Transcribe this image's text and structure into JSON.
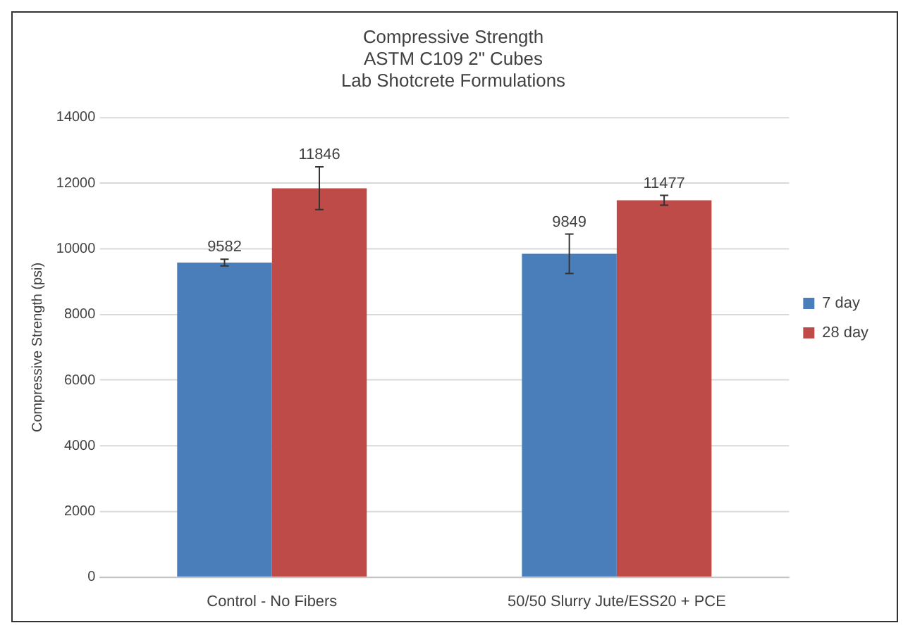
{
  "chart_data": {
    "type": "bar",
    "title": "Compressive Strength\nASTM C109 2\" Cubes\nLab Shotcrete Formulations",
    "ylabel": "Compressive Strength (psi)",
    "categories": [
      "Control - No Fibers",
      "50/50 Slurry Jute/ESS20 + PCE"
    ],
    "series": [
      {
        "name": "7 day",
        "color": "#4a7ebb",
        "values": [
          9582,
          9849
        ],
        "errors": [
          100,
          600
        ]
      },
      {
        "name": "28 day",
        "color": "#be4b48",
        "values": [
          11846,
          11477
        ],
        "errors": [
          650,
          150
        ]
      }
    ],
    "ylim": [
      0,
      14000
    ],
    "yticks": [
      0,
      2000,
      4000,
      6000,
      8000,
      10000,
      12000,
      14000
    ],
    "grid": "y",
    "legend": "right",
    "data_labels": true
  }
}
